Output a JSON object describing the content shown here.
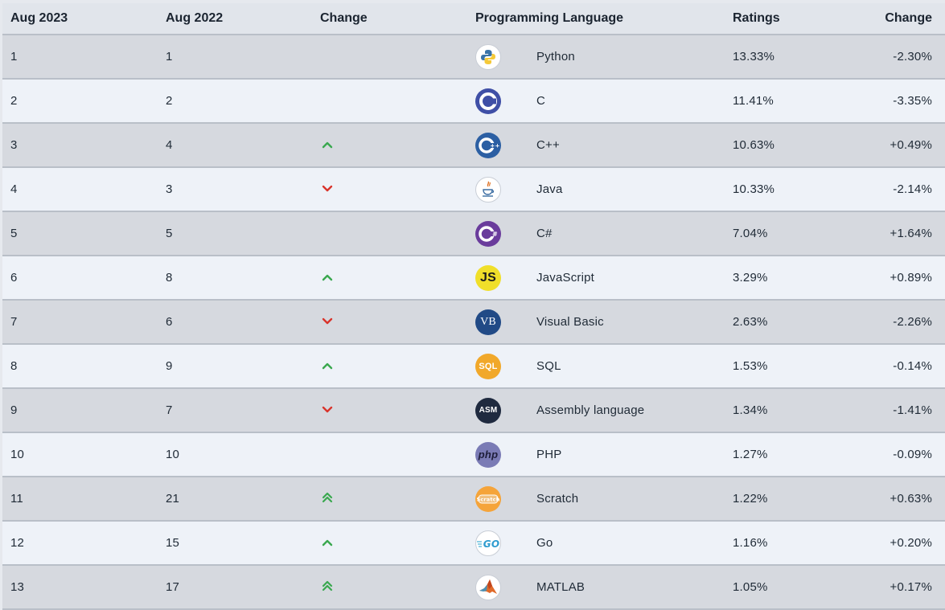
{
  "headers": {
    "current": "Aug 2023",
    "previous": "Aug 2022",
    "change": "Change",
    "language": "Programming Language",
    "ratings": "Ratings",
    "delta": "Change"
  },
  "colors": {
    "up": "#3aa84f",
    "down": "#d9342b"
  },
  "rows": [
    {
      "current": "1",
      "previous": "1",
      "trend": "none",
      "language": "Python",
      "ratings": "13.33%",
      "delta": "-2.30%",
      "icon": "python-icon"
    },
    {
      "current": "2",
      "previous": "2",
      "trend": "none",
      "language": "C",
      "ratings": "11.41%",
      "delta": "-3.35%",
      "icon": "c-icon"
    },
    {
      "current": "3",
      "previous": "4",
      "trend": "up",
      "language": "C++",
      "ratings": "10.63%",
      "delta": "+0.49%",
      "icon": "cpp-icon"
    },
    {
      "current": "4",
      "previous": "3",
      "trend": "down",
      "language": "Java",
      "ratings": "10.33%",
      "delta": "-2.14%",
      "icon": "java-icon"
    },
    {
      "current": "5",
      "previous": "5",
      "trend": "none",
      "language": "C#",
      "ratings": "7.04%",
      "delta": "+1.64%",
      "icon": "csharp-icon"
    },
    {
      "current": "6",
      "previous": "8",
      "trend": "up",
      "language": "JavaScript",
      "ratings": "3.29%",
      "delta": "+0.89%",
      "icon": "javascript-icon",
      "logo_text": "JS"
    },
    {
      "current": "7",
      "previous": "6",
      "trend": "down",
      "language": "Visual Basic",
      "ratings": "2.63%",
      "delta": "-2.26%",
      "icon": "visual-basic-icon",
      "logo_text": "VB"
    },
    {
      "current": "8",
      "previous": "9",
      "trend": "up",
      "language": "SQL",
      "ratings": "1.53%",
      "delta": "-0.14%",
      "icon": "sql-icon",
      "logo_text": "SQL"
    },
    {
      "current": "9",
      "previous": "7",
      "trend": "down",
      "language": "Assembly language",
      "ratings": "1.34%",
      "delta": "-1.41%",
      "icon": "assembly-icon",
      "logo_text": "ASM"
    },
    {
      "current": "10",
      "previous": "10",
      "trend": "none",
      "language": "PHP",
      "ratings": "1.27%",
      "delta": "-0.09%",
      "icon": "php-icon",
      "logo_text": "php"
    },
    {
      "current": "11",
      "previous": "21",
      "trend": "double-up",
      "language": "Scratch",
      "ratings": "1.22%",
      "delta": "+0.63%",
      "icon": "scratch-icon",
      "logo_text": "Scratch"
    },
    {
      "current": "12",
      "previous": "15",
      "trend": "up",
      "language": "Go",
      "ratings": "1.16%",
      "delta": "+0.20%",
      "icon": "go-icon",
      "logo_text": "GO"
    },
    {
      "current": "13",
      "previous": "17",
      "trend": "double-up",
      "language": "MATLAB",
      "ratings": "1.05%",
      "delta": "+0.17%",
      "icon": "matlab-icon"
    }
  ]
}
